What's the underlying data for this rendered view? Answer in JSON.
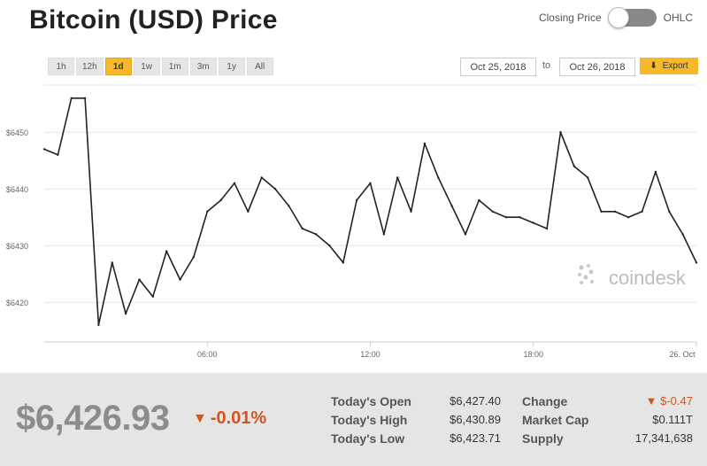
{
  "header": {
    "title": "Bitcoin (USD) Price"
  },
  "toggle": {
    "left_label": "Closing Price",
    "right_label": "OHLC"
  },
  "ranges": [
    {
      "label": "1h",
      "active": false
    },
    {
      "label": "12h",
      "active": false
    },
    {
      "label": "1d",
      "active": true
    },
    {
      "label": "1w",
      "active": false
    },
    {
      "label": "1m",
      "active": false
    },
    {
      "label": "3m",
      "active": false
    },
    {
      "label": "1y",
      "active": false
    },
    {
      "label": "All",
      "active": false
    }
  ],
  "date_range": {
    "from": "Oct 25, 2018",
    "to_label": "to",
    "to": "Oct 26, 2018"
  },
  "export": {
    "label": "Export",
    "icon": "download-arrow-icon"
  },
  "watermark": {
    "text": "coindesk"
  },
  "colors": {
    "accent": "#f7b92b",
    "negative": "#d1551e",
    "line": "#222222"
  },
  "chart_data": {
    "type": "line",
    "x_ticks": [
      "06:00",
      "12:00",
      "18:00",
      "26. Oct"
    ],
    "y_ticks": [
      "$6450",
      "$6440",
      "$6430",
      "$6420"
    ],
    "ylim": [
      6413,
      6458
    ],
    "grid": true,
    "series": [
      {
        "x": [
          "00:00",
          "00:30",
          "01:00",
          "01:30",
          "02:00",
          "02:30",
          "03:00",
          "03:30",
          "04:00",
          "04:30",
          "05:00",
          "05:30",
          "06:00",
          "06:30",
          "07:00",
          "07:30",
          "08:00",
          "08:30",
          "09:00",
          "09:30",
          "10:00",
          "10:30",
          "11:00",
          "11:30",
          "12:00",
          "12:30",
          "13:00",
          "13:30",
          "14:00",
          "14:30",
          "15:00",
          "15:30",
          "16:00",
          "16:30",
          "17:00",
          "17:30",
          "18:00",
          "18:30",
          "19:00",
          "19:30",
          "20:00",
          "20:30",
          "21:00",
          "21:30",
          "22:00",
          "22:30",
          "23:00",
          "23:30",
          "24:00"
        ],
        "values": [
          6447,
          6446,
          6456,
          6456,
          6416,
          6427,
          6418,
          6424,
          6421,
          6429,
          6424,
          6428,
          6436,
          6438,
          6441,
          6436,
          6442,
          6440,
          6437,
          6433,
          6432,
          6430,
          6427,
          6438,
          6441,
          6432,
          6442,
          6436,
          6448,
          6442,
          6437,
          6432,
          6438,
          6436,
          6435,
          6435,
          6434,
          6433,
          6450,
          6444,
          6442,
          6436,
          6436,
          6435,
          6436,
          6443,
          6436,
          6432,
          6427
        ]
      }
    ]
  },
  "summary": {
    "price": "$6,426.93",
    "change_pct": "-0.01%",
    "open_label": "Today's Open",
    "open_value": "$6,427.40",
    "high_label": "Today's High",
    "high_value": "$6,430.89",
    "low_label": "Today's Low",
    "low_value": "$6,423.71",
    "change_label": "Change",
    "change_value": "$-0.47",
    "mcap_label": "Market Cap",
    "mcap_value": "$0.111T",
    "supply_label": "Supply",
    "supply_value": "17,341,638"
  }
}
